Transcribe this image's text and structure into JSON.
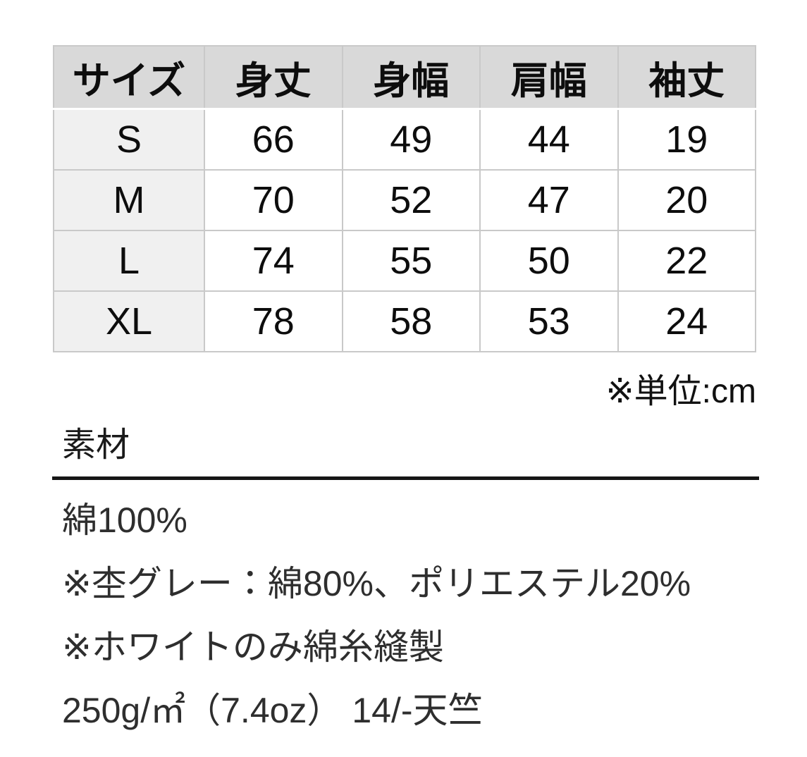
{
  "size_table": {
    "columns": [
      "サイズ",
      "身丈",
      "身幅",
      "肩幅",
      "袖丈"
    ],
    "rows": [
      [
        "S",
        "66",
        "49",
        "44",
        "19"
      ],
      [
        "M",
        "70",
        "52",
        "47",
        "20"
      ],
      [
        "L",
        "74",
        "55",
        "50",
        "22"
      ],
      [
        "XL",
        "78",
        "58",
        "53",
        "24"
      ]
    ],
    "unit_note": "※単位:cm"
  },
  "material_section": {
    "heading": "素材",
    "lines": [
      "綿100%",
      "※杢グレー：綿80%、ポリエステル20%",
      "※ホワイトのみ綿糸縫製",
      "250g/㎡（7.4oz） 14/-天竺"
    ]
  },
  "colors": {
    "header_bg": "#d9d9d9",
    "size_col_bg": "#f0f0f0",
    "cell_border": "#c9c9c9",
    "rule": "#161616",
    "table_text": "#0d0d0d",
    "body_text": "#2e2e2e",
    "page_bg": "#ffffff"
  }
}
